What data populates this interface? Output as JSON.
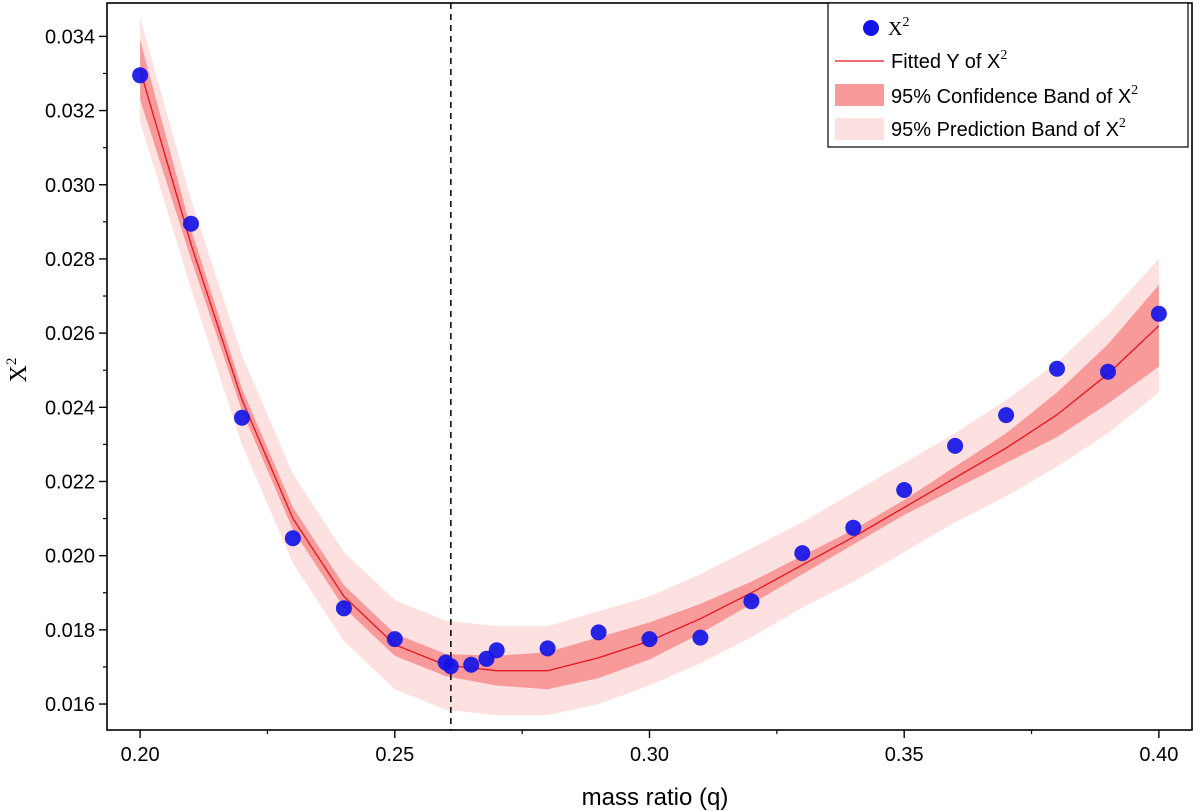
{
  "chart_data": {
    "type": "scatter",
    "xlabel": "mass ratio (q)",
    "ylabel": "X",
    "ylabel_sup": "2",
    "xlim": [
      0.1935,
      0.4065
    ],
    "ylim": [
      0.0153,
      0.0349
    ],
    "x_ticks": [
      0.2,
      0.25,
      0.3,
      0.35,
      0.4
    ],
    "x_tick_labels": [
      "0.20",
      "0.25",
      "0.30",
      "0.35",
      "0.40"
    ],
    "y_ticks": [
      0.016,
      0.018,
      0.02,
      0.022,
      0.024,
      0.026,
      0.028,
      0.03,
      0.032,
      0.034
    ],
    "y_tick_labels": [
      "0.016",
      "0.018",
      "0.020",
      "0.022",
      "0.024",
      "0.026",
      "0.028",
      "0.030",
      "0.032",
      "0.034"
    ],
    "grid": false,
    "legend_position": "top-right",
    "vertical_line": {
      "x": 0.261,
      "style": "dashed"
    },
    "series": [
      {
        "name": "X",
        "name_sup": "2",
        "kind": "scatter",
        "color": "#1414e6",
        "x": [
          0.2,
          0.21,
          0.22,
          0.23,
          0.24,
          0.25,
          0.26,
          0.261,
          0.265,
          0.268,
          0.27,
          0.28,
          0.29,
          0.3,
          0.31,
          0.32,
          0.33,
          0.34,
          0.35,
          0.36,
          0.37,
          0.38,
          0.39,
          0.4
        ],
        "y": [
          0.03295,
          0.02895,
          0.02372,
          0.02047,
          0.01858,
          0.01775,
          0.01712,
          0.01702,
          0.01706,
          0.01722,
          0.01745,
          0.0175,
          0.01793,
          0.01775,
          0.01779,
          0.01877,
          0.02007,
          0.02075,
          0.02177,
          0.02296,
          0.02379,
          0.02504,
          0.02496,
          0.02652
        ]
      },
      {
        "name": "Fitted Y of X",
        "name_sup": "2",
        "kind": "line",
        "color": "#e8141e",
        "x": [
          0.2,
          0.21,
          0.22,
          0.23,
          0.24,
          0.25,
          0.26,
          0.27,
          0.28,
          0.29,
          0.3,
          0.31,
          0.32,
          0.33,
          0.34,
          0.35,
          0.36,
          0.37,
          0.38,
          0.39,
          0.4
        ],
        "y": [
          0.0331,
          0.0284,
          0.0242,
          0.021,
          0.0189,
          0.0176,
          0.01705,
          0.0169,
          0.0169,
          0.01725,
          0.0177,
          0.0183,
          0.019,
          0.01975,
          0.0205,
          0.0213,
          0.0221,
          0.0229,
          0.0238,
          0.0249,
          0.0262
        ]
      },
      {
        "name": "95% Confidence Band of X",
        "name_sup": "2",
        "kind": "band",
        "color": "#f99a9a",
        "x": [
          0.2,
          0.21,
          0.22,
          0.23,
          0.24,
          0.25,
          0.26,
          0.27,
          0.28,
          0.29,
          0.3,
          0.31,
          0.32,
          0.33,
          0.34,
          0.35,
          0.36,
          0.37,
          0.38,
          0.39,
          0.4
        ],
        "upper": [
          0.0339,
          0.0288,
          0.0245,
          0.0213,
          0.0192,
          0.0179,
          0.01735,
          0.0173,
          0.0174,
          0.0178,
          0.0182,
          0.0187,
          0.0193,
          0.02,
          0.0207,
          0.0215,
          0.0224,
          0.0233,
          0.0244,
          0.0257,
          0.0273
        ],
        "lower": [
          0.0323,
          0.028,
          0.0239,
          0.0207,
          0.0186,
          0.0173,
          0.01675,
          0.0165,
          0.0164,
          0.0167,
          0.0172,
          0.0179,
          0.0187,
          0.0195,
          0.0203,
          0.0211,
          0.0218,
          0.0225,
          0.0232,
          0.0241,
          0.0251
        ]
      },
      {
        "name": "95% Prediction Band of X",
        "name_sup": "2",
        "kind": "band",
        "color": "#fde0e0",
        "x": [
          0.2,
          0.21,
          0.22,
          0.23,
          0.24,
          0.25,
          0.26,
          0.27,
          0.28,
          0.29,
          0.3,
          0.31,
          0.32,
          0.33,
          0.34,
          0.35,
          0.36,
          0.37,
          0.38,
          0.39,
          0.4
        ],
        "upper": [
          0.0345,
          0.0296,
          0.0254,
          0.0222,
          0.0201,
          0.0188,
          0.01825,
          0.0181,
          0.0181,
          0.0185,
          0.0189,
          0.0195,
          0.0202,
          0.0209,
          0.0217,
          0.0225,
          0.0233,
          0.0242,
          0.0252,
          0.0265,
          0.028
        ],
        "lower": [
          0.0317,
          0.0272,
          0.023,
          0.0198,
          0.0177,
          0.0164,
          0.01585,
          0.0157,
          0.0157,
          0.016,
          0.0165,
          0.0171,
          0.0178,
          0.0186,
          0.0193,
          0.0201,
          0.0209,
          0.0216,
          0.0224,
          0.0233,
          0.0244
        ]
      }
    ]
  }
}
